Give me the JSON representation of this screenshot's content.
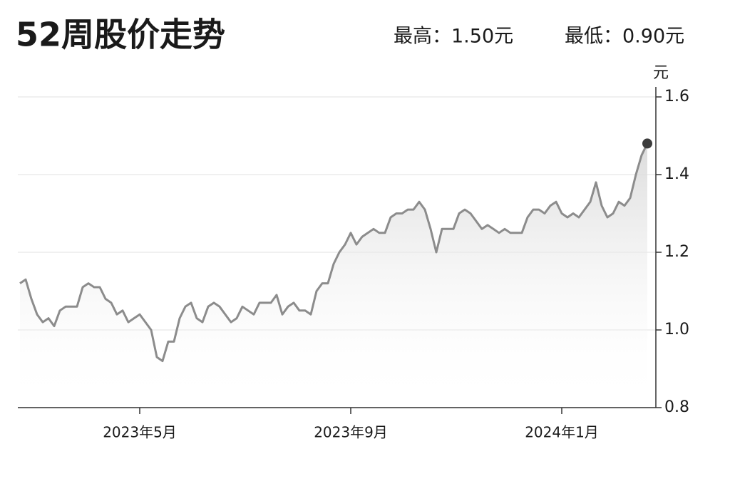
{
  "chart_data": {
    "type": "line",
    "title": "52周股价走势",
    "high_label": "最高：1.50元",
    "low_label": "最低：0.90元",
    "y_unit": "元",
    "categories": [
      null,
      null,
      null,
      null,
      null,
      null,
      null,
      null,
      null,
      null,
      null,
      null,
      null,
      null,
      null,
      null,
      null,
      null,
      null,
      null,
      null,
      "2023年5月",
      null,
      null,
      null,
      null,
      null,
      null,
      null,
      null,
      null,
      null,
      null,
      null,
      null,
      null,
      null,
      null,
      null,
      null,
      null,
      null,
      null,
      null,
      null,
      null,
      null,
      null,
      null,
      null,
      null,
      null,
      null,
      null,
      null,
      null,
      null,
      null,
      "2023年9月",
      null,
      null,
      null,
      null,
      null,
      null,
      null,
      null,
      null,
      null,
      null,
      null,
      null,
      null,
      null,
      null,
      null,
      null,
      null,
      null,
      null,
      null,
      null,
      null,
      null,
      null,
      null,
      null,
      null,
      null,
      null,
      null,
      null,
      null,
      null,
      null,
      "2024年1月",
      null,
      null,
      null,
      null,
      null,
      null,
      null,
      null,
      null,
      null,
      null,
      null,
      null,
      null,
      null
    ],
    "values": [
      1.12,
      1.13,
      1.08,
      1.04,
      1.02,
      1.03,
      1.01,
      1.05,
      1.06,
      1.06,
      1.06,
      1.11,
      1.12,
      1.11,
      1.11,
      1.08,
      1.07,
      1.04,
      1.05,
      1.02,
      1.03,
      1.04,
      1.02,
      1.0,
      0.93,
      0.92,
      0.97,
      0.97,
      1.03,
      1.06,
      1.07,
      1.03,
      1.02,
      1.06,
      1.07,
      1.06,
      1.04,
      1.02,
      1.03,
      1.06,
      1.05,
      1.04,
      1.07,
      1.07,
      1.07,
      1.09,
      1.04,
      1.06,
      1.07,
      1.05,
      1.05,
      1.04,
      1.1,
      1.12,
      1.12,
      1.17,
      1.2,
      1.22,
      1.25,
      1.22,
      1.24,
      1.25,
      1.26,
      1.25,
      1.25,
      1.29,
      1.3,
      1.3,
      1.31,
      1.31,
      1.33,
      1.31,
      1.26,
      1.2,
      1.26,
      1.26,
      1.26,
      1.3,
      1.31,
      1.3,
      1.28,
      1.26,
      1.27,
      1.26,
      1.25,
      1.26,
      1.25,
      1.25,
      1.25,
      1.29,
      1.31,
      1.31,
      1.3,
      1.32,
      1.33,
      1.3,
      1.29,
      1.3,
      1.29,
      1.31,
      1.33,
      1.38,
      1.32,
      1.29,
      1.3,
      1.33,
      1.32,
      1.34,
      1.4,
      1.45,
      1.48
    ],
    "color": "#8c8c8c",
    "marker_color": "#3c3c3c",
    "ylim": [
      0.8,
      1.6
    ],
    "yticks": [
      0.8,
      {
        "value": 1.0,
        "label": "1.0"
      },
      1.2,
      1.4,
      1.6
    ],
    "grid": true
  }
}
